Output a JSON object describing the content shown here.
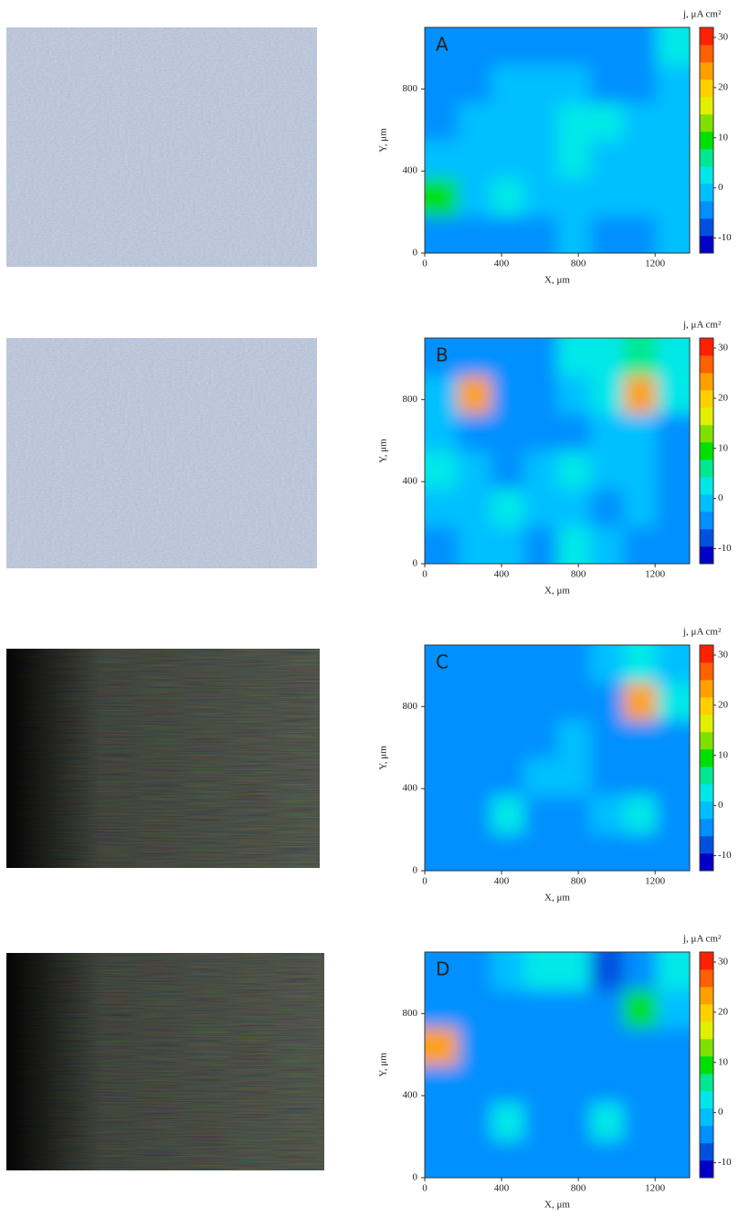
{
  "chart_data": [
    {
      "type": "heatmap",
      "label": "A",
      "x_label": "X, μm",
      "y_label": "Y, μm",
      "xlim": [
        0,
        1380
      ],
      "ylim": [
        0,
        1100
      ],
      "xticks": [
        0,
        400,
        800,
        1200
      ],
      "yticks": [
        0,
        400,
        800
      ],
      "colorbar": {
        "title": "j, μA cm²",
        "lim": [
          -13,
          32
        ],
        "ticks": [
          30,
          20,
          10,
          0,
          -10
        ],
        "colors": [
          "#0000c8",
          "#0050e0",
          "#0090ff",
          "#00c0ff",
          "#00e8e8",
          "#00e890",
          "#00e000",
          "#80e000",
          "#e0f000",
          "#ffd000",
          "#ffa000",
          "#ff6000",
          "#ff2000"
        ]
      },
      "z": [
        [
          -3,
          -3,
          -4,
          -3,
          -2,
          -3,
          -3,
          -2
        ],
        [
          8,
          -1,
          1,
          -2,
          0,
          -1,
          -2,
          -1
        ],
        [
          -1,
          -2,
          -1,
          0,
          1,
          0,
          -1,
          0
        ],
        [
          -3,
          -2,
          -1,
          0,
          2,
          1,
          -1,
          0
        ],
        [
          -4,
          -3,
          -1,
          -2,
          -1,
          -3,
          -3,
          -1
        ],
        [
          -3,
          -4,
          -3,
          -3,
          -4,
          -3,
          -4,
          1
        ]
      ]
    },
    {
      "type": "heatmap",
      "label": "B",
      "x_label": "X, μm",
      "y_label": "Y, μm",
      "xlim": [
        0,
        1380
      ],
      "ylim": [
        0,
        1100
      ],
      "xticks": [
        0,
        400,
        800,
        1200
      ],
      "yticks": [
        0,
        400,
        800
      ],
      "colorbar": {
        "title": "j, μA cm²",
        "lim": [
          -13,
          32
        ],
        "ticks": [
          30,
          20,
          10,
          0,
          -10
        ],
        "colors": [
          "#0000c8",
          "#0050e0",
          "#0090ff",
          "#00c0ff",
          "#00e8e8",
          "#00e890",
          "#00e000",
          "#80e000",
          "#e0f000",
          "#ffd000",
          "#ffa000",
          "#ff6000",
          "#ff2000"
        ]
      },
      "z": [
        [
          -3,
          -2,
          -1,
          -3,
          1,
          0,
          -3,
          -3
        ],
        [
          -1,
          -2,
          3,
          -2,
          -2,
          -3,
          -2,
          -3
        ],
        [
          3,
          -1,
          -3,
          -2,
          2,
          0,
          -2,
          -3
        ],
        [
          -2,
          -4,
          -3,
          -3,
          -3,
          -2,
          -2,
          -4
        ],
        [
          -1,
          22,
          -4,
          -3,
          -1,
          3,
          22,
          2
        ],
        [
          -4,
          -5,
          -4,
          -3,
          2,
          4,
          6,
          2
        ]
      ]
    },
    {
      "type": "heatmap",
      "label": "C",
      "x_label": "X, μm",
      "y_label": "Y, μm",
      "xlim": [
        0,
        1380
      ],
      "ylim": [
        0,
        1100
      ],
      "xticks": [
        0,
        400,
        800,
        1200
      ],
      "yticks": [
        0,
        400,
        800
      ],
      "colorbar": {
        "title": "j, μA cm²",
        "lim": [
          -13,
          32
        ],
        "ticks": [
          30,
          20,
          10,
          0,
          -10
        ],
        "colors": [
          "#0000c8",
          "#0050e0",
          "#0090ff",
          "#00c0ff",
          "#00e8e8",
          "#00e890",
          "#00e000",
          "#80e000",
          "#e0f000",
          "#ffd000",
          "#ffa000",
          "#ff6000",
          "#ff2000"
        ]
      },
      "z": [
        [
          -4,
          -3,
          -4,
          -3,
          -4,
          -4,
          -3,
          -4
        ],
        [
          -4,
          -3,
          3,
          -3,
          -3,
          -2,
          2,
          -4
        ],
        [
          -3,
          -3,
          -3,
          -1,
          -1,
          -3,
          -4,
          -4
        ],
        [
          -5,
          -4,
          -4,
          -3,
          -2,
          -3,
          -3,
          -4
        ],
        [
          -4,
          -6,
          -5,
          -4,
          -4,
          -4,
          22,
          4
        ],
        [
          -3,
          -4,
          -6,
          -4,
          -3,
          -2,
          3,
          -2
        ]
      ]
    },
    {
      "type": "heatmap",
      "label": "D",
      "x_label": "X, μm",
      "y_label": "Y, μm",
      "xlim": [
        0,
        1380
      ],
      "ylim": [
        0,
        1100
      ],
      "xticks": [
        0,
        400,
        800,
        1200
      ],
      "yticks": [
        0,
        400,
        800
      ],
      "colorbar": {
        "title": "j, μA cm²",
        "lim": [
          -13,
          32
        ],
        "ticks": [
          30,
          20,
          10,
          0,
          -10
        ],
        "colors": [
          "#0000c8",
          "#0050e0",
          "#0090ff",
          "#00c0ff",
          "#00e8e8",
          "#00e890",
          "#00e000",
          "#80e000",
          "#e0f000",
          "#ffd000",
          "#ffa000",
          "#ff6000",
          "#ff2000"
        ]
      },
      "z": [
        [
          -4,
          -4,
          -4,
          -4,
          -4,
          -4,
          -4,
          -4
        ],
        [
          -4,
          -3,
          2,
          -4,
          -4,
          2,
          -3,
          -4
        ],
        [
          -3,
          -4,
          -3,
          -3,
          -3,
          -3,
          -4,
          -4
        ],
        [
          22,
          -6,
          -4,
          -3,
          -4,
          -4,
          -4,
          -5
        ],
        [
          -3,
          -4,
          -3,
          -3,
          -3,
          -4,
          8,
          -2
        ],
        [
          -4,
          -3,
          -1,
          2,
          1,
          -7,
          -3,
          2
        ]
      ]
    }
  ]
}
